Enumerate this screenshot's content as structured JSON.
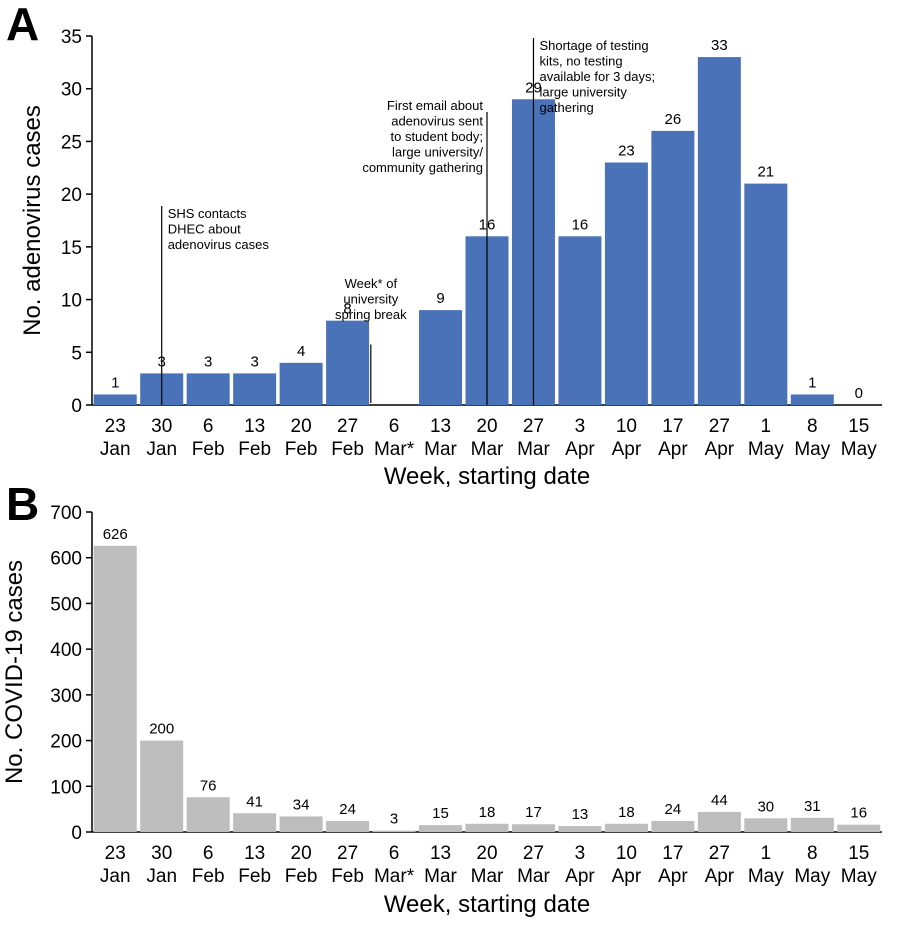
{
  "chart_data": [
    {
      "panel_label": "A",
      "type": "bar",
      "color": "#4a72b8",
      "categories": [
        [
          "23",
          "Jan"
        ],
        [
          "30",
          "Jan"
        ],
        [
          "6",
          "Feb"
        ],
        [
          "13",
          "Feb"
        ],
        [
          "20",
          "Feb"
        ],
        [
          "27",
          "Feb"
        ],
        [
          "6",
          "Mar*"
        ],
        [
          "13",
          "Mar"
        ],
        [
          "20",
          "Mar"
        ],
        [
          "27",
          "Mar"
        ],
        [
          "3",
          "Apr"
        ],
        [
          "10",
          "Apr"
        ],
        [
          "17",
          "Apr"
        ],
        [
          "27",
          "Apr"
        ],
        [
          "1",
          "May"
        ],
        [
          "8",
          "May"
        ],
        [
          "15",
          "May"
        ]
      ],
      "values": [
        1,
        3,
        3,
        3,
        4,
        8,
        null,
        9,
        16,
        29,
        16,
        23,
        26,
        33,
        21,
        1,
        0
      ],
      "data_labels": [
        "1",
        "3",
        "3",
        "3",
        "4",
        "8",
        "",
        "9",
        "16",
        "29",
        "16",
        "23",
        "26",
        "33",
        "21",
        "1",
        "0"
      ],
      "ylabel": "No. adenovirus cases",
      "xlabel": "Week, starting date",
      "ylim": [
        0,
        35
      ],
      "yticks": [
        0,
        5,
        10,
        15,
        20,
        25,
        30,
        35
      ],
      "grid": false,
      "annotations": [
        {
          "at": 1.5,
          "lines": [
            "SHS contacts",
            "DHEC about",
            "adenovirus cases"
          ]
        },
        {
          "at": 6,
          "lines": [
            "Week* of",
            "university",
            "spring break"
          ]
        },
        {
          "at": 8.5,
          "lines": [
            "First email about",
            "adenovirus sent",
            "to student body;",
            "large university/",
            "community gathering"
          ]
        },
        {
          "at": 9.5,
          "lines": [
            "Shortage of testing",
            "kits, no testing",
            "available for 3 days;",
            "large university",
            "gathering"
          ]
        }
      ]
    },
    {
      "panel_label": "B",
      "type": "bar",
      "color": "#bdbdbd",
      "categories": [
        [
          "23",
          "Jan"
        ],
        [
          "30",
          "Jan"
        ],
        [
          "6",
          "Feb"
        ],
        [
          "13",
          "Feb"
        ],
        [
          "20",
          "Feb"
        ],
        [
          "27",
          "Feb"
        ],
        [
          "6",
          "Mar*"
        ],
        [
          "13",
          "Mar"
        ],
        [
          "20",
          "Mar"
        ],
        [
          "27",
          "Mar"
        ],
        [
          "3",
          "Apr"
        ],
        [
          "10",
          "Apr"
        ],
        [
          "17",
          "Apr"
        ],
        [
          "27",
          "Apr"
        ],
        [
          "1",
          "May"
        ],
        [
          "8",
          "May"
        ],
        [
          "15",
          "May"
        ]
      ],
      "values": [
        626,
        200,
        76,
        41,
        34,
        24,
        3,
        15,
        18,
        17,
        13,
        18,
        24,
        44,
        30,
        31,
        16
      ],
      "data_labels": [
        "626",
        "200",
        "76",
        "41",
        "34",
        "24",
        "3",
        "15",
        "18",
        "17",
        "13",
        "18",
        "24",
        "44",
        "30",
        "31",
        "16"
      ],
      "ylabel": "No. COVID-19 cases",
      "xlabel": "Week, starting date",
      "ylim": [
        0,
        700
      ],
      "yticks": [
        0,
        100,
        200,
        300,
        400,
        500,
        600,
        700
      ],
      "grid": false,
      "annotations": []
    }
  ]
}
